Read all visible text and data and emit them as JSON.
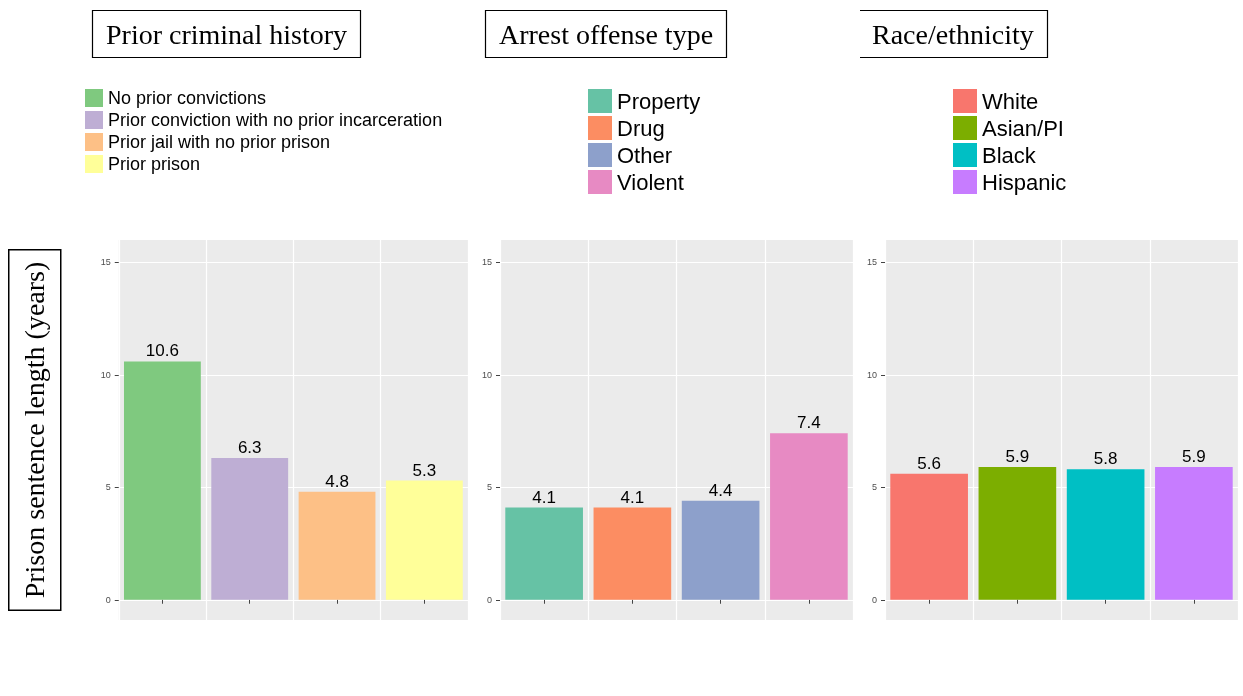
{
  "chart_data": [
    {
      "type": "bar",
      "title": "Prior criminal history",
      "ylabel": "Prison sentence length (years)",
      "categories": [
        null,
        null,
        null,
        null
      ],
      "stacked": true,
      "legend": "top",
      "grid": true,
      "data_labels": true,
      "tick_labels": "y",
      "ylim": [
        -0.9,
        16
      ],
      "yticks": [
        0,
        5,
        10,
        15
      ],
      "series": [
        {
          "name": "No prior convictions",
          "color": "#7fc97f",
          "values": [
            10.6,
            null,
            null,
            null
          ]
        },
        {
          "name": "Prior conviction with no prior incarceration",
          "color": "#beaed4",
          "values": [
            null,
            6.3,
            null,
            null
          ]
        },
        {
          "name": "Prior jail with no prior prison",
          "color": "#fdc086",
          "values": [
            null,
            null,
            4.8,
            null
          ]
        },
        {
          "name": "Prior prison",
          "color": "#ffff99",
          "values": [
            null,
            null,
            null,
            5.3
          ]
        }
      ]
    },
    {
      "type": "bar",
      "title": "Arrest offense type",
      "categories": [
        null,
        null,
        null,
        null
      ],
      "stacked": true,
      "legend": "top",
      "grid": true,
      "data_labels": true,
      "tick_labels": "y",
      "ylim": [
        -0.9,
        16
      ],
      "yticks": [
        0,
        5,
        10,
        15
      ],
      "series": [
        {
          "name": "Property",
          "color": "#66c2a5",
          "values": [
            4.1,
            null,
            null,
            null
          ]
        },
        {
          "name": "Drug",
          "color": "#fc8d62",
          "values": [
            null,
            4.1,
            null,
            null
          ]
        },
        {
          "name": "Other",
          "color": "#8da0cb",
          "values": [
            null,
            null,
            4.4,
            null
          ]
        },
        {
          "name": "Violent",
          "color": "#e78ac3",
          "values": [
            null,
            null,
            null,
            7.4
          ]
        }
      ]
    },
    {
      "type": "bar",
      "title": "Race/ethnicity",
      "categories": [
        null,
        null,
        null,
        null
      ],
      "stacked": true,
      "legend": "top",
      "grid": true,
      "data_labels": true,
      "tick_labels": "y",
      "ylim": [
        -0.9,
        16
      ],
      "yticks": [
        0,
        5,
        10,
        15
      ],
      "series": [
        {
          "name": "White",
          "color": "#f8766d",
          "values": [
            5.6,
            null,
            null,
            null
          ]
        },
        {
          "name": "Asian/PI",
          "color": "#7cae00",
          "values": [
            null,
            5.9,
            null,
            null
          ]
        },
        {
          "name": "Black",
          "color": "#00bfc4",
          "values": [
            null,
            null,
            5.8,
            null
          ]
        },
        {
          "name": "Hispanic",
          "color": "#c77cff",
          "values": [
            null,
            null,
            null,
            5.9
          ]
        }
      ]
    }
  ]
}
